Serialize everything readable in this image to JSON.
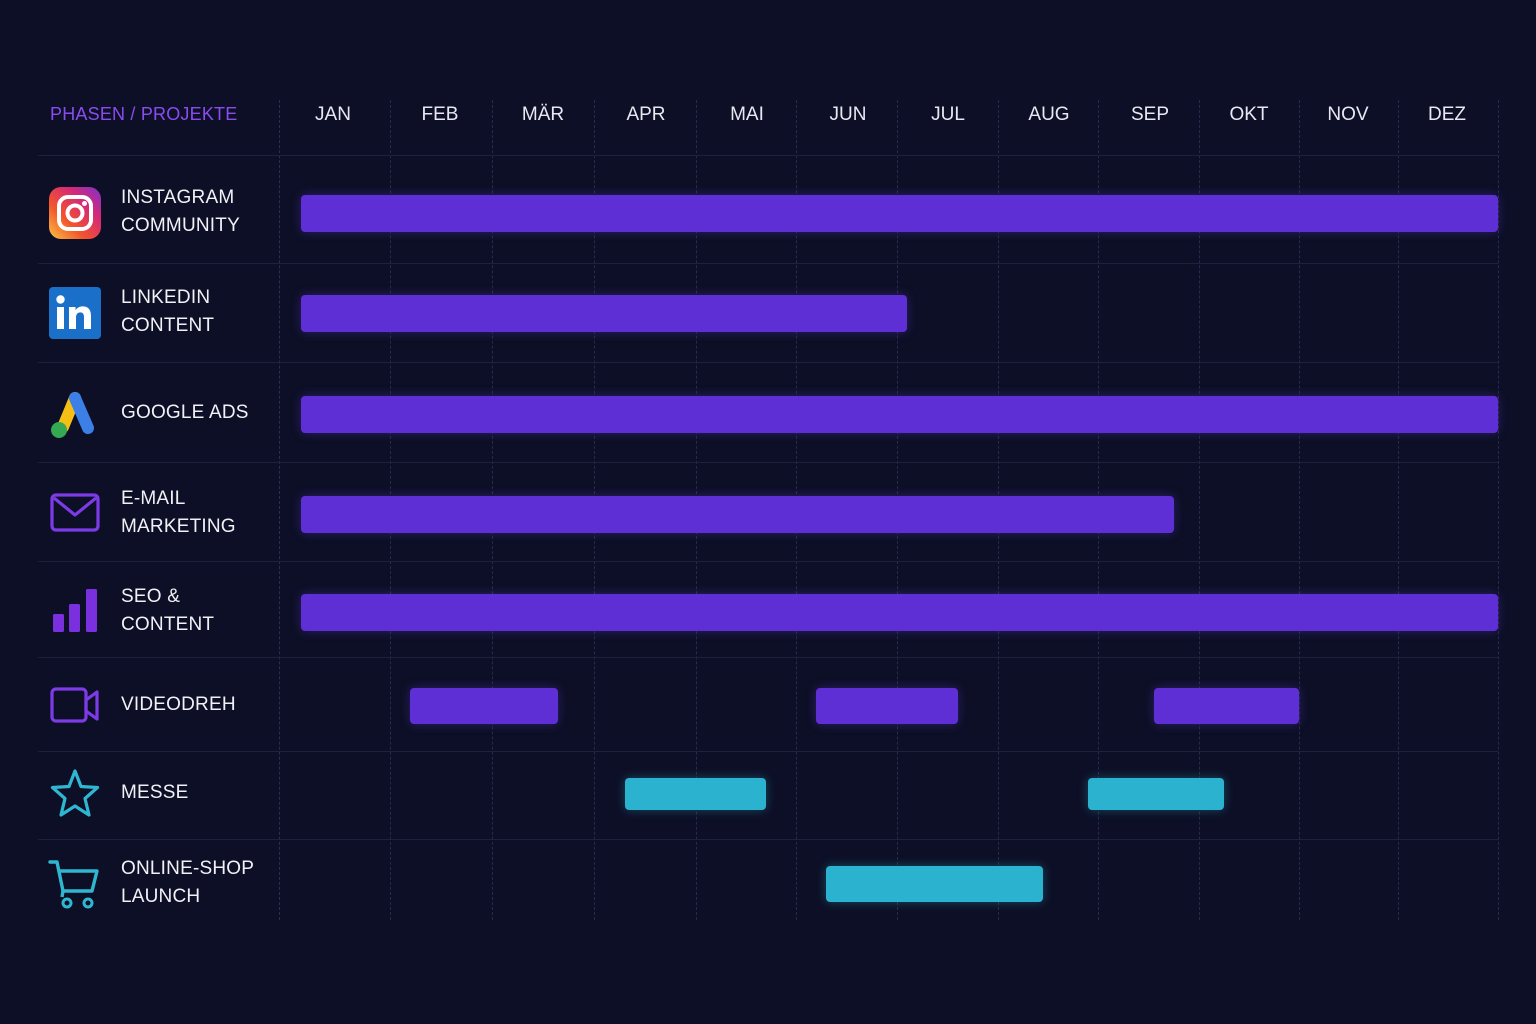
{
  "chart_data": {
    "type": "gantt",
    "header": "PHASEN / PROJEKTE",
    "months": [
      "JAN",
      "FEB",
      "MÄR",
      "APR",
      "MAI",
      "JUN",
      "JUL",
      "AUG",
      "SEP",
      "OKT",
      "NOV",
      "DEZ"
    ],
    "grid": "dashed-vertical",
    "colors": {
      "background": "#0d0f26",
      "purple": "#5f2fd6",
      "cyan": "#2bb2cf",
      "header": "#8a4cf0"
    },
    "rows": [
      {
        "label": [
          "INSTAGRAM",
          "COMMUNITY"
        ],
        "icon": "instagram-icon",
        "bars": [
          {
            "start": 0.2,
            "end": 12.0,
            "color": "purple"
          }
        ]
      },
      {
        "label": [
          "LINKEDIN",
          "CONTENT"
        ],
        "icon": "linkedin-icon",
        "bars": [
          {
            "start": 0.2,
            "end": 6.1,
            "color": "purple"
          }
        ]
      },
      {
        "label": [
          "GOOGLE ADS"
        ],
        "icon": "google-ads-icon",
        "bars": [
          {
            "start": 0.2,
            "end": 12.0,
            "color": "purple"
          }
        ]
      },
      {
        "label": [
          "E-MAIL",
          "MARKETING"
        ],
        "icon": "mail-icon",
        "bars": [
          {
            "start": 0.2,
            "end": 8.75,
            "color": "purple"
          }
        ]
      },
      {
        "label": [
          "SEO &",
          "CONTENT"
        ],
        "icon": "bar-chart-icon",
        "bars": [
          {
            "start": 0.2,
            "end": 12.0,
            "color": "purple"
          }
        ]
      },
      {
        "label": [
          "VIDEODREH"
        ],
        "icon": "video-camera-icon",
        "bars": [
          {
            "start": 1.2,
            "end": 2.65,
            "color": "purple"
          },
          {
            "start": 5.2,
            "end": 6.6,
            "color": "purple"
          },
          {
            "start": 8.55,
            "end": 10.0,
            "color": "purple"
          }
        ]
      },
      {
        "label": [
          "MESSE"
        ],
        "icon": "star-icon",
        "bars": [
          {
            "start": 3.3,
            "end": 4.7,
            "color": "cyan"
          },
          {
            "start": 7.9,
            "end": 9.25,
            "color": "cyan"
          }
        ]
      },
      {
        "label": [
          "ONLINE-SHOP",
          "LAUNCH"
        ],
        "icon": "shopping-cart-icon",
        "bars": [
          {
            "start": 5.3,
            "end": 7.45,
            "color": "cyan"
          }
        ]
      }
    ]
  }
}
